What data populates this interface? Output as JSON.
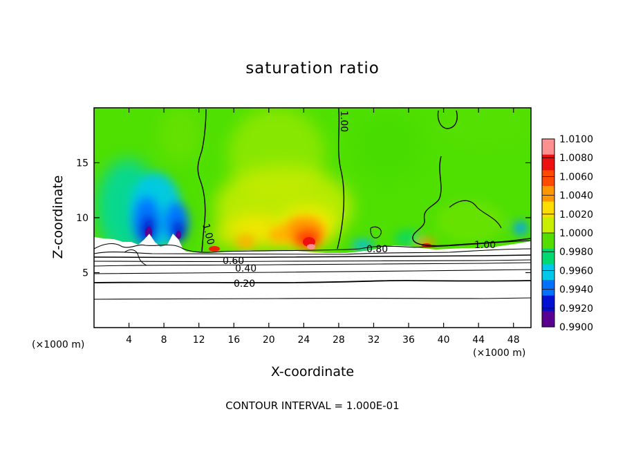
{
  "chart_data": {
    "type": "heatmap",
    "title": "saturation ratio",
    "xlabel": "X-coordinate",
    "ylabel": "Z-coordinate",
    "x_units": "(×1000 m)",
    "y_units": "(×1000 m)",
    "xlim": [
      0,
      50
    ],
    "ylim": [
      0,
      20
    ],
    "x_ticks": [
      4,
      8,
      12,
      16,
      20,
      24,
      28,
      32,
      36,
      40,
      44,
      48
    ],
    "y_ticks": [
      5,
      10,
      15
    ],
    "footnote": "CONTOUR INTERVAL = 1.000E-01",
    "colorbar": {
      "min": 0.99,
      "max": 1.01,
      "labels": [
        "1.0100",
        "1.0080",
        "1.0060",
        "1.0040",
        "1.0020",
        "1.0000",
        "0.9980",
        "0.9960",
        "0.9940",
        "0.9920",
        "0.9900"
      ],
      "colors": [
        "#ff9090",
        "#ee1010",
        "#ff4a00",
        "#ff9800",
        "#ffdd00",
        "#c8ee00",
        "#55dd00",
        "#00d870",
        "#00c8e8",
        "#0070ff",
        "#0010d0",
        "#5a0090"
      ]
    },
    "contour_labels": [
      "1.00",
      "1.00",
      "1.00",
      "0.60",
      "0.40",
      "0.20",
      "0.80"
    ],
    "features": [
      {
        "x": 7,
        "z": 8.8,
        "value": 0.9905
      },
      {
        "x": 9.5,
        "z": 8.4,
        "value": 0.9915
      },
      {
        "x": 5.5,
        "z": 11.5,
        "value": 0.9965
      },
      {
        "x": 23.5,
        "z": 8.6,
        "value": 1.0065
      },
      {
        "x": 20.5,
        "z": 9.0,
        "value": 1.0035
      },
      {
        "x": 17.5,
        "z": 8.5,
        "value": 1.0025
      },
      {
        "x": 38.5,
        "z": 7.3,
        "value": 1.0045
      },
      {
        "x": 31.5,
        "z": 7.2,
        "value": 0.9935
      },
      {
        "x": 47.5,
        "z": 8.6,
        "value": 0.9935
      },
      {
        "x": 13.5,
        "z": 7.1,
        "value": 1.0055
      }
    ]
  }
}
